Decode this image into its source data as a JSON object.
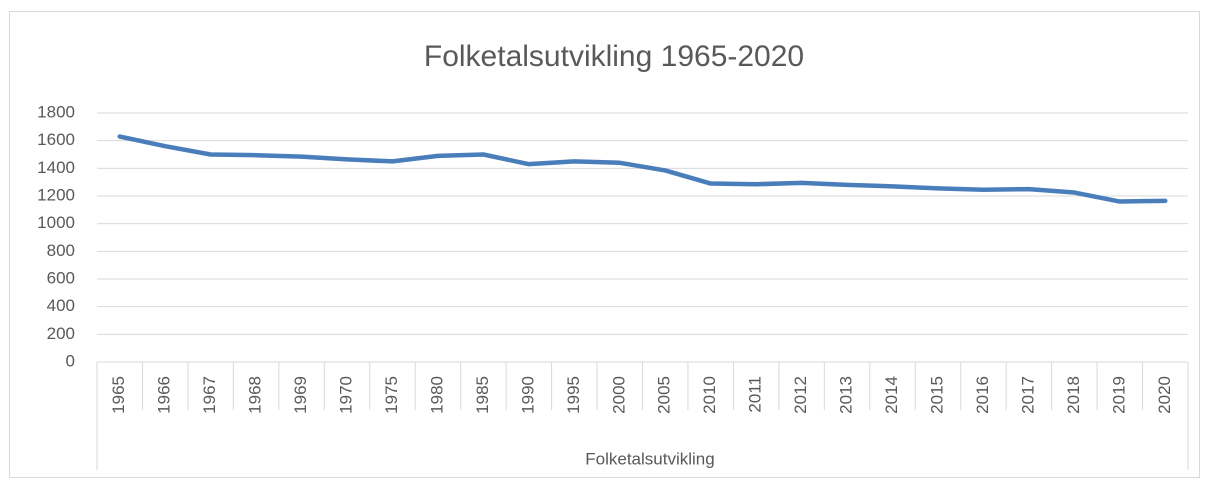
{
  "chart_data": {
    "type": "line",
    "title": "Folketalsutvikling 1965-2020",
    "x_label": "Folketalsutvikling",
    "categories": [
      "1965",
      "1966",
      "1967",
      "1968",
      "1969",
      "1970",
      "1975",
      "1980",
      "1985",
      "1990",
      "1995",
      "2000",
      "2005",
      "2010",
      "2011",
      "2012",
      "2013",
      "2014",
      "2015",
      "2016",
      "2017",
      "2018",
      "2019",
      "2020"
    ],
    "series": [
      {
        "color": "#4a7ebb",
        "values": [
          1630,
          1560,
          1500,
          1495,
          1485,
          1465,
          1450,
          1490,
          1500,
          1430,
          1450,
          1440,
          1385,
          1290,
          1285,
          1295,
          1280,
          1270,
          1255,
          1245,
          1250,
          1225,
          1160,
          1165
        ]
      }
    ],
    "ylim": [
      0,
      1800
    ],
    "yticks": [
      0,
      200,
      400,
      600,
      800,
      1000,
      1200,
      1400,
      1600,
      1800
    ],
    "grid": true
  }
}
